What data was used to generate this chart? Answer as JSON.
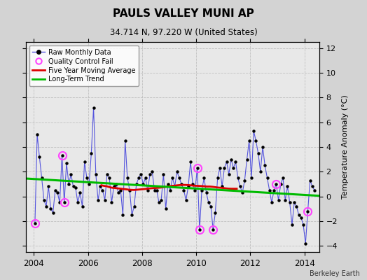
{
  "title": "PAULS VALLEY MUNI AP",
  "subtitle": "34.714 N, 97.220 W (United States)",
  "ylabel": "Temperature Anomaly (°C)",
  "attribution": "Berkeley Earth",
  "ylim": [
    -4.5,
    12.5
  ],
  "yticks": [
    -4,
    -2,
    0,
    2,
    4,
    6,
    8,
    10,
    12
  ],
  "xlim": [
    2003.7,
    2014.55
  ],
  "xticks": [
    2004,
    2006,
    2008,
    2010,
    2012,
    2014
  ],
  "bg_color": "#d3d3d3",
  "plot_bg_color": "#e8e8e8",
  "raw_x": [
    2004.042,
    2004.125,
    2004.208,
    2004.292,
    2004.375,
    2004.458,
    2004.542,
    2004.625,
    2004.708,
    2004.792,
    2004.875,
    2004.958,
    2005.042,
    2005.125,
    2005.208,
    2005.292,
    2005.375,
    2005.458,
    2005.542,
    2005.625,
    2005.708,
    2005.792,
    2005.875,
    2005.958,
    2006.042,
    2006.125,
    2006.208,
    2006.292,
    2006.375,
    2006.458,
    2006.542,
    2006.625,
    2006.708,
    2006.792,
    2006.875,
    2006.958,
    2007.042,
    2007.125,
    2007.208,
    2007.292,
    2007.375,
    2007.458,
    2007.542,
    2007.625,
    2007.708,
    2007.792,
    2007.875,
    2007.958,
    2008.042,
    2008.125,
    2008.208,
    2008.292,
    2008.375,
    2008.458,
    2008.542,
    2008.625,
    2008.708,
    2008.792,
    2008.875,
    2008.958,
    2009.042,
    2009.125,
    2009.208,
    2009.292,
    2009.375,
    2009.458,
    2009.542,
    2009.625,
    2009.708,
    2009.792,
    2009.875,
    2009.958,
    2010.042,
    2010.125,
    2010.208,
    2010.292,
    2010.375,
    2010.458,
    2010.542,
    2010.625,
    2010.708,
    2010.792,
    2010.875,
    2010.958,
    2011.042,
    2011.125,
    2011.208,
    2011.292,
    2011.375,
    2011.458,
    2011.542,
    2011.625,
    2011.708,
    2011.792,
    2011.875,
    2011.958,
    2012.042,
    2012.125,
    2012.208,
    2012.292,
    2012.375,
    2012.458,
    2012.542,
    2012.625,
    2012.708,
    2012.792,
    2012.875,
    2012.958,
    2013.042,
    2013.125,
    2013.208,
    2013.292,
    2013.375,
    2013.458,
    2013.542,
    2013.625,
    2013.708,
    2013.792,
    2013.875,
    2013.958,
    2014.042,
    2014.125,
    2014.208,
    2014.292,
    2014.375
  ],
  "raw_y": [
    -2.2,
    5.0,
    3.2,
    1.5,
    -0.3,
    -0.8,
    0.8,
    -1.0,
    -1.3,
    0.5,
    0.3,
    -0.5,
    3.3,
    -0.5,
    2.7,
    1.0,
    1.8,
    0.8,
    0.7,
    -0.5,
    0.3,
    -0.8,
    2.8,
    1.5,
    1.0,
    3.5,
    7.2,
    1.8,
    -0.3,
    0.8,
    0.5,
    -0.3,
    1.8,
    1.5,
    -0.5,
    0.8,
    1.0,
    0.3,
    0.5,
    -1.5,
    4.5,
    1.5,
    0.5,
    -1.5,
    -0.8,
    1.0,
    1.5,
    1.8,
    1.0,
    1.5,
    0.5,
    1.8,
    2.0,
    0.5,
    0.5,
    -0.5,
    -0.3,
    1.8,
    -1.0,
    1.0,
    0.5,
    1.5,
    0.8,
    2.0,
    1.5,
    1.0,
    0.5,
    -0.3,
    0.8,
    2.8,
    1.0,
    0.5,
    2.3,
    -2.7,
    0.5,
    1.5,
    0.3,
    -0.5,
    -0.8,
    -2.7,
    -1.3,
    1.5,
    2.3,
    0.8,
    2.3,
    2.8,
    1.8,
    3.0,
    2.3,
    2.8,
    1.5,
    0.8,
    0.3,
    1.3,
    3.0,
    4.5,
    1.5,
    5.3,
    4.5,
    3.5,
    2.0,
    4.0,
    2.5,
    1.5,
    0.5,
    -0.5,
    0.5,
    1.0,
    -0.3,
    1.0,
    1.5,
    -0.3,
    0.8,
    -0.5,
    -2.3,
    -0.5,
    -0.8,
    -1.5,
    -1.7,
    -2.3,
    -3.8,
    -1.2,
    1.3,
    0.8,
    0.5
  ],
  "qc_fail_x": [
    2004.042,
    2005.042,
    2005.125,
    2010.042,
    2010.125,
    2010.625,
    2012.958,
    2014.125
  ],
  "qc_fail_y": [
    -2.2,
    3.3,
    -0.5,
    2.3,
    -2.7,
    -2.7,
    1.0,
    -1.2
  ],
  "five_year_x": [
    2006.5,
    2006.6,
    2006.7,
    2006.8,
    2006.9,
    2007.0,
    2007.1,
    2007.2,
    2007.3,
    2007.4,
    2007.5,
    2007.6,
    2007.7,
    2007.8,
    2007.9,
    2008.0,
    2008.1,
    2008.2,
    2008.3,
    2008.4,
    2008.5,
    2008.6,
    2008.7,
    2008.8,
    2008.9,
    2009.0,
    2009.1,
    2009.2,
    2009.3,
    2009.4,
    2009.5,
    2009.6,
    2009.7,
    2009.8,
    2009.9,
    2010.0,
    2010.1,
    2010.2,
    2010.3,
    2010.4,
    2010.5,
    2010.6,
    2010.7,
    2010.8,
    2010.9,
    2011.0,
    2011.1,
    2011.2,
    2011.3,
    2011.4,
    2011.5
  ],
  "five_year_y": [
    0.9,
    0.85,
    0.82,
    0.75,
    0.7,
    0.68,
    0.65,
    0.63,
    0.6,
    0.58,
    0.55,
    0.53,
    0.52,
    0.54,
    0.56,
    0.58,
    0.6,
    0.63,
    0.65,
    0.67,
    0.68,
    0.7,
    0.72,
    0.75,
    0.78,
    0.82,
    0.85,
    0.87,
    0.9,
    0.92,
    0.93,
    0.93,
    0.92,
    0.9,
    0.87,
    0.86,
    0.85,
    0.84,
    0.82,
    0.8,
    0.8,
    0.78,
    0.75,
    0.72,
    0.7,
    0.68,
    0.65,
    0.63,
    0.62,
    0.62,
    0.62
  ],
  "trend_x": [
    2003.7,
    2014.55
  ],
  "trend_y": [
    1.45,
    0.05
  ],
  "raw_line_color": "#5555dd",
  "raw_marker_color": "#000000",
  "qc_color": "#ff44ff",
  "five_year_color": "#dd0000",
  "trend_color": "#00bb00",
  "grid_color": "#c0c0c0"
}
